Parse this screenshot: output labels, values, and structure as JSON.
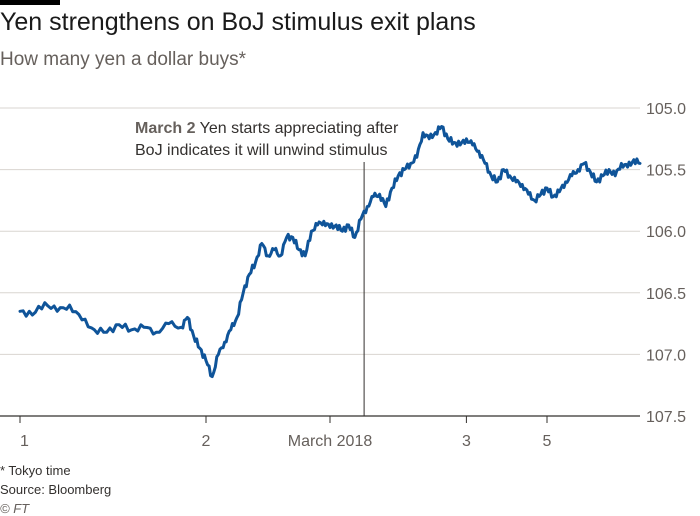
{
  "header": {
    "title": "Yen strengthens on BoJ stimulus exit plans",
    "subtitle": "How many yen a dollar buys*"
  },
  "footer": {
    "note": "* Tokyo time",
    "source": "Source: Bloomberg",
    "credit": "© FT"
  },
  "colors": {
    "line": "#0f5499",
    "grid": "#d9d5d0",
    "annotation_line": "#33302e"
  },
  "chart_data": {
    "type": "line",
    "title": "Yen strengthens on BoJ stimulus exit plans",
    "subtitle": "How many yen a dollar buys*",
    "y_inverted": true,
    "ylim": [
      107.5,
      105.0
    ],
    "y_ticks": [
      "105.0",
      "105.5",
      "106.0",
      "106.5",
      "107.0",
      "107.5"
    ],
    "y_tick_values": [
      105.0,
      105.5,
      106.0,
      106.5,
      107.0,
      107.5
    ],
    "x_tick_labels": [
      "1",
      "2",
      "March 2018",
      "3",
      "5"
    ],
    "x_tick_positions": [
      0.0,
      0.3,
      0.5,
      0.72,
      0.85
    ],
    "grid": true,
    "annotation": {
      "bold": "March 2",
      "line1": " Yen starts appreciating after",
      "line2": "BoJ indicates it will unwind stimulus",
      "x": 0.555
    },
    "series": [
      {
        "x": [
          0.0,
          0.02,
          0.04,
          0.06,
          0.08,
          0.1,
          0.12,
          0.14,
          0.16,
          0.18,
          0.2,
          0.22,
          0.24,
          0.26,
          0.27,
          0.28,
          0.29,
          0.3,
          0.31,
          0.32,
          0.33,
          0.34,
          0.35,
          0.36,
          0.37,
          0.38,
          0.39,
          0.4,
          0.41,
          0.42,
          0.43,
          0.44,
          0.45,
          0.46,
          0.47,
          0.48,
          0.49,
          0.5,
          0.51,
          0.52,
          0.53,
          0.54,
          0.55,
          0.56,
          0.57,
          0.58,
          0.59,
          0.6,
          0.61,
          0.62,
          0.63,
          0.64,
          0.65,
          0.66,
          0.67,
          0.68,
          0.69,
          0.7,
          0.71,
          0.72,
          0.73,
          0.74,
          0.75,
          0.76,
          0.77,
          0.78,
          0.79,
          0.8,
          0.81,
          0.82,
          0.83,
          0.84,
          0.85,
          0.86,
          0.87,
          0.88,
          0.89,
          0.9,
          0.91,
          0.92,
          0.93,
          0.94,
          0.95,
          0.96,
          0.97,
          0.98,
          0.99,
          1.0
        ],
        "y": [
          106.65,
          106.68,
          106.58,
          106.65,
          106.6,
          106.72,
          106.8,
          106.82,
          106.76,
          106.8,
          106.78,
          106.82,
          106.75,
          106.78,
          106.7,
          106.85,
          106.95,
          107.05,
          107.18,
          107.0,
          106.9,
          106.8,
          106.7,
          106.5,
          106.35,
          106.25,
          106.1,
          106.2,
          106.15,
          106.2,
          106.05,
          106.05,
          106.15,
          106.2,
          106.0,
          105.95,
          105.92,
          105.97,
          105.95,
          106.0,
          105.95,
          106.05,
          105.9,
          105.8,
          105.72,
          105.7,
          105.8,
          105.65,
          105.55,
          105.5,
          105.45,
          105.4,
          105.2,
          105.25,
          105.2,
          105.15,
          105.25,
          105.28,
          105.3,
          105.25,
          105.3,
          105.35,
          105.45,
          105.55,
          105.6,
          105.5,
          105.55,
          105.6,
          105.62,
          105.7,
          105.75,
          105.7,
          105.65,
          105.72,
          105.68,
          105.6,
          105.55,
          105.5,
          105.45,
          105.52,
          105.6,
          105.55,
          105.5,
          105.55,
          105.45,
          105.48,
          105.42,
          105.45
        ]
      }
    ]
  }
}
